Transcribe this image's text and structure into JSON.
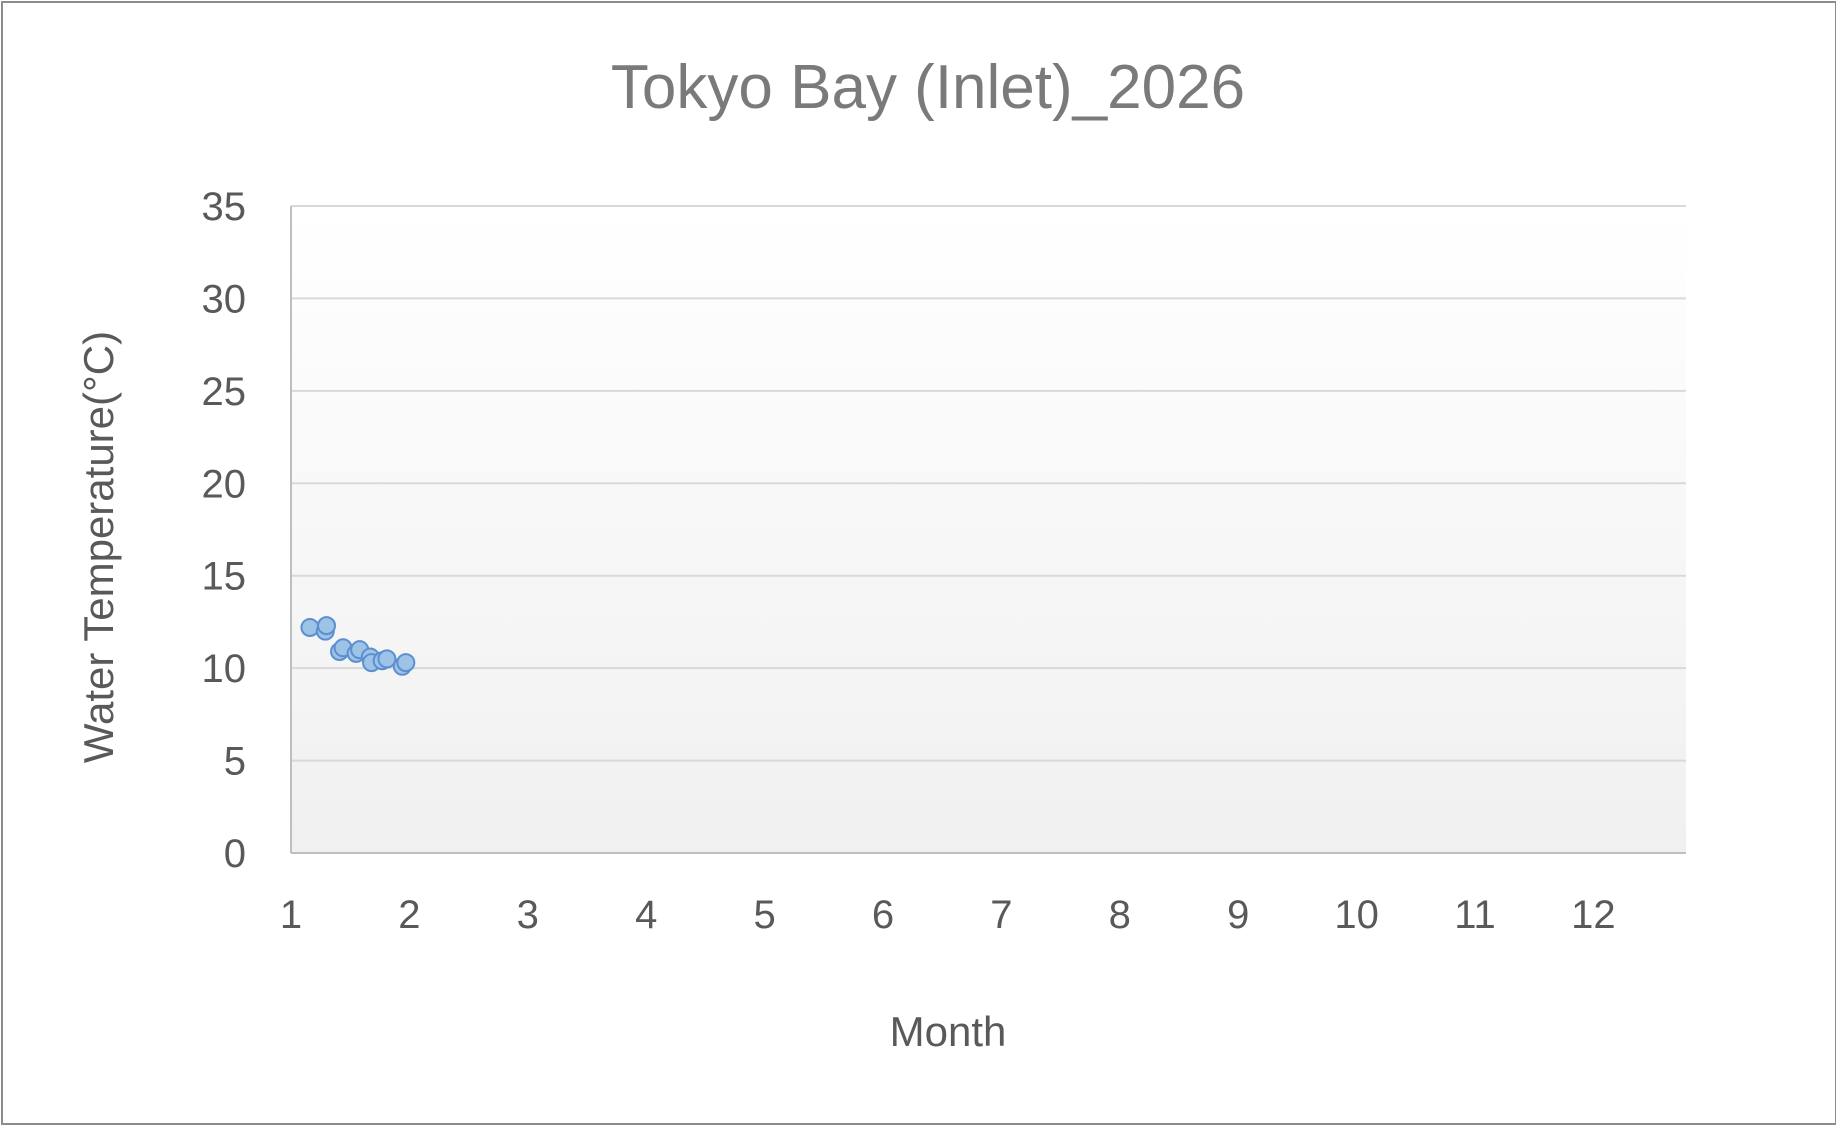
{
  "chart_data": {
    "type": "scatter",
    "title": "Tokyo Bay (Inlet)_2026",
    "xlabel": "Month",
    "ylabel": "Water Temperature(°C)",
    "xlim": [
      1,
      12.8
    ],
    "ylim": [
      0,
      35
    ],
    "xticks": [
      "1",
      "2",
      "3",
      "4",
      "5",
      "6",
      "7",
      "8",
      "9",
      "10",
      "11",
      "12"
    ],
    "yticks": [
      "0",
      "5",
      "10",
      "15",
      "20",
      "25",
      "30",
      "35"
    ],
    "grid": true,
    "legend": "none",
    "marker_color": "#9dc3e6",
    "marker_edge_color": "#5b8fd0",
    "series": [
      {
        "points": [
          {
            "x": 1.16,
            "y": 12.2
          },
          {
            "x": 1.29,
            "y": 12.0
          },
          {
            "x": 1.3,
            "y": 12.3
          },
          {
            "x": 1.41,
            "y": 10.9
          },
          {
            "x": 1.44,
            "y": 11.1
          },
          {
            "x": 1.55,
            "y": 10.8
          },
          {
            "x": 1.58,
            "y": 11.0
          },
          {
            "x": 1.67,
            "y": 10.6
          },
          {
            "x": 1.68,
            "y": 10.3
          },
          {
            "x": 1.77,
            "y": 10.4
          },
          {
            "x": 1.81,
            "y": 10.5
          },
          {
            "x": 1.94,
            "y": 10.1
          },
          {
            "x": 1.97,
            "y": 10.3
          }
        ]
      }
    ]
  }
}
